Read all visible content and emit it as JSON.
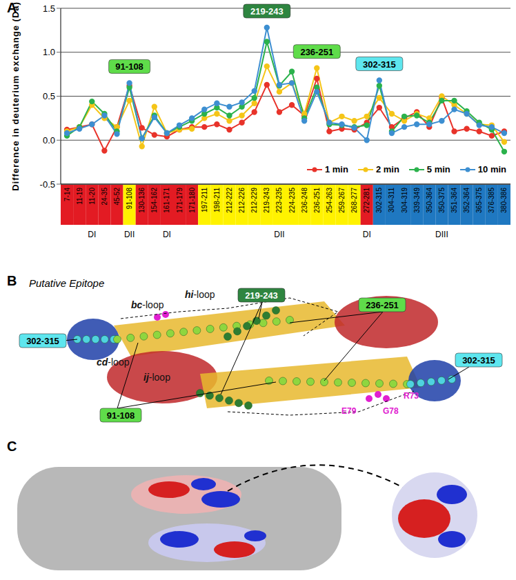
{
  "chart_data": {
    "type": "line",
    "label": "A",
    "y_label": "Difference in deuterium exchange (Da)",
    "categories": [
      "7-14",
      "11-19",
      "11-20",
      "24-35",
      "45-52",
      "91-108",
      "130-136",
      "154-162",
      "161-171",
      "171-179",
      "171-180",
      "197-211",
      "198-211",
      "212-222",
      "212-226",
      "212-229",
      "219-243",
      "223-235",
      "224-235",
      "236-248",
      "236-251",
      "254-263",
      "259-267",
      "268-277",
      "272-281",
      "302-315",
      "304-311",
      "304-319",
      "339-349",
      "350-364",
      "350-375",
      "351-364",
      "352-364",
      "365-375",
      "376-385",
      "380-386"
    ],
    "category_domains": [
      "DI",
      "DI",
      "DI",
      "DI",
      "DI",
      "DII",
      "DI",
      "DI",
      "DI",
      "DI",
      "DI",
      "DII",
      "DII",
      "DII",
      "DII",
      "DII",
      "DII",
      "DII",
      "DII",
      "DII",
      "DII",
      "DII",
      "DII",
      "DII",
      "DI",
      "DIII",
      "DIII",
      "DIII",
      "DIII",
      "DIII",
      "DIII",
      "DIII",
      "DIII",
      "DIII",
      "DIII",
      "DIII"
    ],
    "domain_colors": {
      "DI": "#e31b23",
      "DII": "#fff200",
      "DIII": "#1f78c1"
    },
    "series": [
      {
        "name": "1 min",
        "color": "#e8332a",
        "values": [
          0.12,
          0.15,
          0.18,
          -0.12,
          0.15,
          0.62,
          0.14,
          0.06,
          0.04,
          0.12,
          0.15,
          0.15,
          0.18,
          0.12,
          0.2,
          0.32,
          0.63,
          0.32,
          0.4,
          0.28,
          0.7,
          0.1,
          0.13,
          0.12,
          0.2,
          0.37,
          0.15,
          0.25,
          0.32,
          0.15,
          0.48,
          0.1,
          0.13,
          0.1,
          0.05,
          0.1
        ]
      },
      {
        "name": "2 min",
        "color": "#f5c518",
        "values": [
          0.1,
          0.15,
          0.4,
          0.25,
          0.15,
          0.45,
          -0.07,
          0.38,
          0.08,
          0.12,
          0.13,
          0.25,
          0.3,
          0.22,
          0.28,
          0.42,
          0.84,
          0.55,
          0.65,
          0.3,
          0.82,
          0.2,
          0.27,
          0.22,
          0.27,
          0.48,
          0.3,
          0.22,
          0.3,
          0.25,
          0.5,
          0.4,
          0.3,
          0.18,
          0.17,
          -0.02
        ]
      },
      {
        "name": "5 min",
        "color": "#2bb24c",
        "values": [
          0.05,
          0.15,
          0.44,
          0.3,
          0.1,
          0.6,
          0.02,
          0.28,
          0.08,
          0.15,
          0.22,
          0.3,
          0.37,
          0.28,
          0.38,
          0.48,
          1.12,
          0.62,
          0.78,
          0.25,
          0.6,
          0.18,
          0.17,
          0.15,
          0.17,
          0.62,
          0.1,
          0.27,
          0.28,
          0.2,
          0.45,
          0.45,
          0.33,
          0.2,
          0.12,
          -0.13
        ]
      },
      {
        "name": "10 min",
        "color": "#3d8fd1",
        "values": [
          0.08,
          0.13,
          0.18,
          0.28,
          0.07,
          0.65,
          0.02,
          0.26,
          0.08,
          0.17,
          0.25,
          0.35,
          0.42,
          0.38,
          0.43,
          0.56,
          1.28,
          0.63,
          0.65,
          0.22,
          0.55,
          0.2,
          0.18,
          0.14,
          0.0,
          0.68,
          0.08,
          0.15,
          0.18,
          0.18,
          0.22,
          0.35,
          0.3,
          0.17,
          0.15,
          0.08
        ]
      }
    ],
    "ylim": [
      -0.5,
      1.5
    ],
    "yticks": [
      {
        "value": -0.5,
        "label": "-0.5"
      },
      {
        "value": 0,
        "label": "0.0"
      },
      {
        "value": 0.5,
        "label": "0.5"
      },
      {
        "value": 1,
        "label": "1.0"
      },
      {
        "value": 1.5,
        "label": "1.5"
      }
    ],
    "grid": true,
    "legend": "lower right",
    "marker": "circle",
    "annotations": [
      {
        "text": "91-108",
        "category": "91-108",
        "color": "#5fdc4a",
        "text_color": "#000000"
      },
      {
        "text": "219-243",
        "category": "219-243",
        "color": "#2e8540",
        "text_color": "#ffffff"
      },
      {
        "text": "236-251",
        "category": "236-251",
        "color": "#5fdc4a",
        "text_color": "#000000"
      },
      {
        "text": "302-315",
        "category": "302-315",
        "color": "#5ee6ee",
        "text_color": "#000000"
      }
    ]
  },
  "panel_b": {
    "label": "B",
    "title": "Putative Epitope",
    "loops": [
      "hi-loop",
      "bc-loop",
      "cd-loop",
      "ij-loop"
    ],
    "regions": [
      {
        "text": "219-243",
        "color": "#2e8540",
        "text_color": "#ffffff"
      },
      {
        "text": "236-251",
        "color": "#5fdc4a",
        "text_color": "#000000"
      },
      {
        "text": "302-315",
        "color": "#5ee6ee",
        "text_color": "#000000"
      },
      {
        "text": "91-108",
        "color": "#5fdc4a",
        "text_color": "#000000"
      },
      {
        "text": "302-315",
        "color": "#5ee6ee",
        "text_color": "#000000"
      }
    ],
    "residues": [
      {
        "text": "R73",
        "color": "#e020d0"
      },
      {
        "text": "G78",
        "color": "#e020d0"
      },
      {
        "text": "E79",
        "color": "#e020d0"
      }
    ]
  },
  "panel_c": {
    "label": "C"
  }
}
